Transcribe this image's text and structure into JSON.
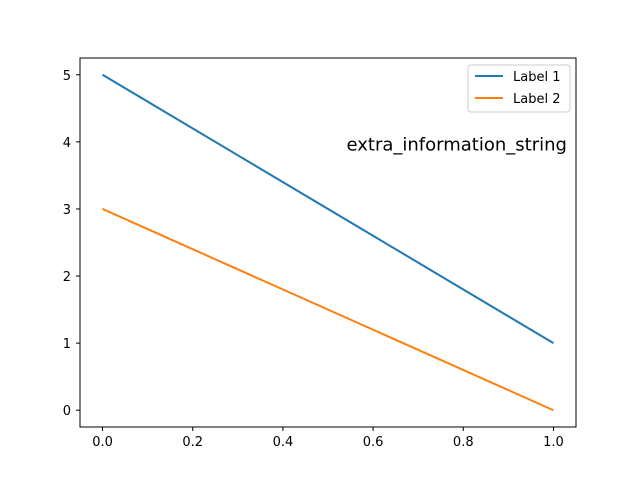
{
  "chart_data": {
    "type": "line",
    "title": "",
    "xlabel": "",
    "ylabel": "",
    "xlim": [
      -0.05,
      1.05
    ],
    "ylim": [
      -0.25,
      5.25
    ],
    "xticks": [
      0.0,
      0.2,
      0.4,
      0.6,
      0.8,
      1.0
    ],
    "xtick_labels": [
      "0.0",
      "0.2",
      "0.4",
      "0.6",
      "0.8",
      "1.0"
    ],
    "yticks": [
      0,
      1,
      2,
      3,
      4,
      5
    ],
    "ytick_labels": [
      "0",
      "1",
      "2",
      "3",
      "4",
      "5"
    ],
    "grid": false,
    "legend_position": "top-right",
    "series": [
      {
        "name": "Label 1",
        "color": "#1f77b4",
        "x": [
          0,
          1
        ],
        "y": [
          5,
          1
        ]
      },
      {
        "name": "Label 2",
        "color": "#ff7f0e",
        "x": [
          0,
          1
        ],
        "y": [
          3,
          0
        ]
      }
    ],
    "annotations": [
      {
        "text": "extra_information_string",
        "x": 1.03,
        "y": 3.87,
        "anchor": "end"
      }
    ]
  }
}
